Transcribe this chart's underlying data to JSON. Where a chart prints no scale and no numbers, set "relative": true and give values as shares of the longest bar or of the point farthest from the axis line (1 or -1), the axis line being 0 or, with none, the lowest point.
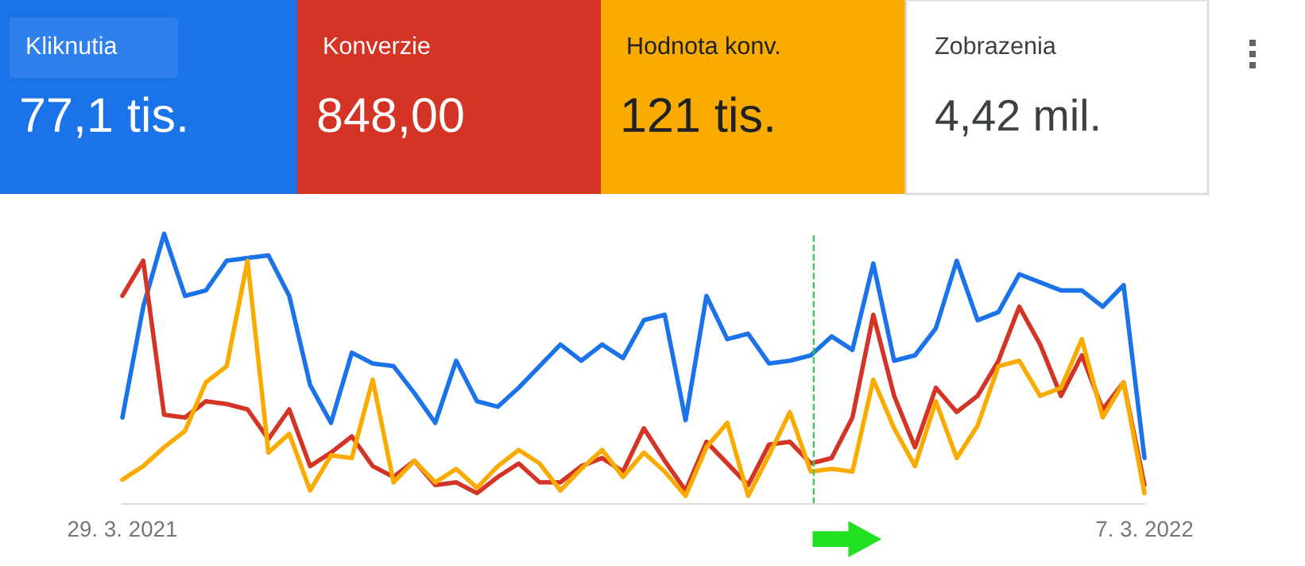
{
  "chart_data": {
    "type": "line",
    "relative": true,
    "x": [
      "2021-03-29",
      "2021-04-05",
      "2021-04-12",
      "2021-04-19",
      "2021-04-26",
      "2021-05-03",
      "2021-05-10",
      "2021-05-17",
      "2021-05-24",
      "2021-05-31",
      "2021-06-07",
      "2021-06-14",
      "2021-06-21",
      "2021-06-28",
      "2021-07-05",
      "2021-07-12",
      "2021-07-19",
      "2021-07-26",
      "2021-08-02",
      "2021-08-09",
      "2021-08-16",
      "2021-08-23",
      "2021-08-30",
      "2021-09-06",
      "2021-09-13",
      "2021-09-20",
      "2021-09-27",
      "2021-10-04",
      "2021-10-11",
      "2021-10-18",
      "2021-10-25",
      "2021-11-01",
      "2021-11-08",
      "2021-11-15",
      "2021-11-22",
      "2021-11-29",
      "2021-12-06",
      "2021-12-13",
      "2021-12-20",
      "2021-12-27",
      "2022-01-03",
      "2022-01-10",
      "2022-01-17",
      "2022-01-24",
      "2022-01-31",
      "2022-02-07",
      "2022-02-14",
      "2022-02-21",
      "2022-02-28",
      "2022-03-07"
    ],
    "series": [
      {
        "color": "#1a73e8",
        "values": [
          0.32,
          0.73,
          1.0,
          0.77,
          0.79,
          0.9,
          0.91,
          0.92,
          0.77,
          0.44,
          0.3,
          0.56,
          0.52,
          0.51,
          0.41,
          0.3,
          0.53,
          0.38,
          0.36,
          0.43,
          0.51,
          0.59,
          0.53,
          0.59,
          0.54,
          0.68,
          0.7,
          0.31,
          0.77,
          0.61,
          0.63,
          0.52,
          0.53,
          0.55,
          0.62,
          0.57,
          0.89,
          0.53,
          0.55,
          0.65,
          0.9,
          0.68,
          0.71,
          0.85,
          0.82,
          0.79,
          0.79,
          0.73,
          0.81,
          0.17
        ]
      },
      {
        "color": "#d33426",
        "values": [
          0.77,
          0.9,
          0.33,
          0.32,
          0.38,
          0.37,
          0.35,
          0.24,
          0.35,
          0.14,
          0.19,
          0.25,
          0.14,
          0.1,
          0.16,
          0.07,
          0.08,
          0.04,
          0.1,
          0.15,
          0.08,
          0.08,
          0.14,
          0.17,
          0.12,
          0.28,
          0.16,
          0.05,
          0.23,
          0.15,
          0.07,
          0.22,
          0.23,
          0.15,
          0.17,
          0.32,
          0.7,
          0.4,
          0.21,
          0.43,
          0.34,
          0.4,
          0.53,
          0.73,
          0.59,
          0.4,
          0.55,
          0.35,
          0.45,
          0.07
        ]
      },
      {
        "color": "#f9ab00",
        "values": [
          0.09,
          0.14,
          0.21,
          0.27,
          0.45,
          0.51,
          0.9,
          0.19,
          0.26,
          0.05,
          0.18,
          0.17,
          0.46,
          0.08,
          0.16,
          0.08,
          0.13,
          0.06,
          0.14,
          0.2,
          0.15,
          0.05,
          0.13,
          0.2,
          0.1,
          0.19,
          0.12,
          0.03,
          0.21,
          0.3,
          0.03,
          0.18,
          0.34,
          0.12,
          0.13,
          0.12,
          0.46,
          0.28,
          0.14,
          0.38,
          0.17,
          0.29,
          0.51,
          0.53,
          0.4,
          0.43,
          0.61,
          0.32,
          0.45,
          0.04
        ]
      }
    ],
    "xlim": [
      "2021-03-29",
      "2022-03-07"
    ],
    "xticks": [
      {
        "value": "2021-03-29",
        "label": "29. 3. 2021"
      },
      {
        "value": "2022-03-07",
        "label": "7. 3. 2022"
      }
    ],
    "ref_lines": [
      {
        "axis": "x",
        "value": "2021-11-16",
        "color": "#34c759",
        "line_style": "dashed"
      }
    ],
    "annotations": [
      "Kliknutia",
      "77,1 tis.",
      "Konverzie",
      "848,00",
      "Hodnota konv.",
      "121 tis.",
      "Zobrazenia",
      "4,42 mil."
    ],
    "grid": false,
    "line_style": "solid",
    "marker": "none"
  }
}
